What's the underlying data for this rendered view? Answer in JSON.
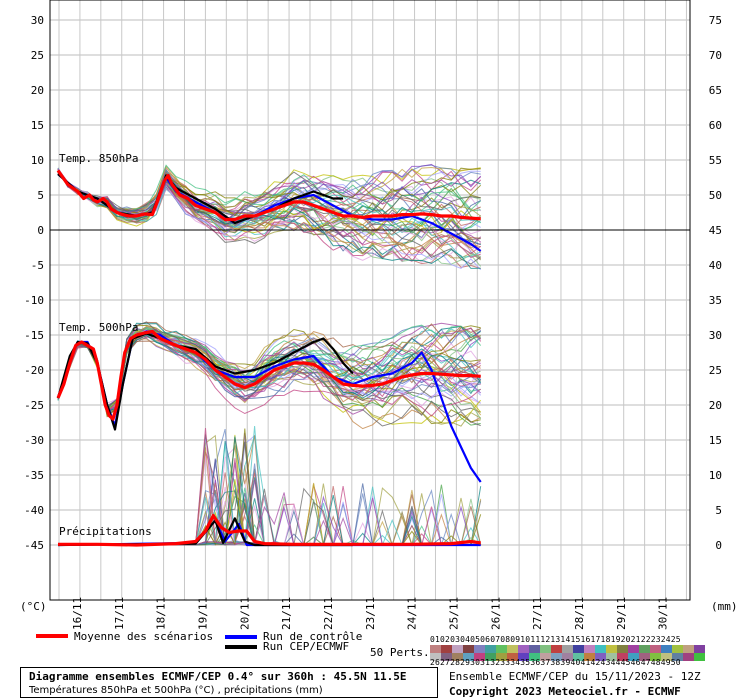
{
  "chart_data": {
    "type": "line",
    "x_dates": [
      "16/11",
      "17/11",
      "18/11",
      "19/11",
      "20/11",
      "21/11",
      "22/11",
      "23/11",
      "24/11",
      "25/11",
      "26/11",
      "27/11",
      "28/11",
      "29/11",
      "30/11"
    ],
    "left_unit": "(°C)",
    "right_unit": "(mm)",
    "left_ticks": [
      30,
      25,
      20,
      15,
      10,
      5,
      0,
      -5,
      -10,
      -15,
      -20,
      -25,
      -30,
      -35,
      -40,
      -45
    ],
    "right_ticks": [
      75,
      70,
      65,
      60,
      55,
      50,
      45,
      40,
      35,
      30,
      25,
      20,
      15,
      10,
      5,
      0
    ],
    "ylim": [
      -50,
      32
    ],
    "panel_labels": {
      "t850": "Temp. 850hPa",
      "t500": "Temp. 500hPa",
      "precip": "Précipitations"
    },
    "series": [
      {
        "name": "Moyenne des scénarios",
        "color": "#ff0000",
        "t850": [
          [
            0,
            8.5
          ],
          [
            0.5,
            6.5
          ],
          [
            1,
            5.5
          ],
          [
            1.3,
            4.5
          ],
          [
            1.6,
            5
          ],
          [
            1.8,
            4.3
          ],
          [
            2,
            4
          ],
          [
            2.3,
            4.5
          ],
          [
            2.5,
            4
          ],
          [
            2.7,
            3
          ],
          [
            3,
            2.5
          ],
          [
            3.3,
            2.2
          ],
          [
            3.6,
            2
          ],
          [
            4,
            2
          ],
          [
            4.4,
            2.3
          ],
          [
            4.8,
            2.2
          ],
          [
            5.1,
            4.5
          ],
          [
            5.4,
            7
          ],
          [
            5.6,
            7.8
          ],
          [
            5.8,
            6.5
          ],
          [
            6.2,
            5
          ],
          [
            6.6,
            4.5
          ],
          [
            7,
            3.5
          ],
          [
            7.5,
            3
          ],
          [
            8,
            2.5
          ],
          [
            8.5,
            1.5
          ],
          [
            9,
            1.5
          ],
          [
            9.5,
            2
          ],
          [
            10,
            2
          ],
          [
            10.5,
            2.5
          ],
          [
            11,
            3
          ],
          [
            11.5,
            3.5
          ],
          [
            12,
            4
          ],
          [
            12.5,
            4
          ],
          [
            13,
            3.5
          ],
          [
            13.5,
            3
          ],
          [
            14,
            2.5
          ],
          [
            14.5,
            2
          ],
          [
            15,
            2
          ],
          [
            15.5,
            1.8
          ],
          [
            16,
            2
          ],
          [
            16.5,
            2
          ],
          [
            17,
            2
          ],
          [
            17.5,
            2.2
          ],
          [
            18,
            2.2
          ],
          [
            18.5,
            2.3
          ],
          [
            19,
            2.2
          ],
          [
            19.5,
            2
          ],
          [
            20,
            2
          ],
          [
            20.5,
            1.8
          ],
          [
            21,
            1.7
          ],
          [
            21.5,
            1.6
          ]
        ],
        "t500": [
          [
            0,
            -24
          ],
          [
            0.3,
            -22
          ],
          [
            0.6,
            -19
          ],
          [
            0.9,
            -16.5
          ],
          [
            1.2,
            -16
          ],
          [
            1.5,
            -16.5
          ],
          [
            1.8,
            -17
          ],
          [
            2,
            -19
          ],
          [
            2.2,
            -22
          ],
          [
            2.4,
            -25
          ],
          [
            2.6,
            -26.5
          ],
          [
            2.8,
            -27
          ],
          [
            3,
            -25
          ],
          [
            3.2,
            -21
          ],
          [
            3.4,
            -17.5
          ],
          [
            3.7,
            -15.5
          ],
          [
            4,
            -15
          ],
          [
            4.4,
            -14.7
          ],
          [
            4.8,
            -14.5
          ],
          [
            5.2,
            -15.5
          ],
          [
            5.6,
            -16
          ],
          [
            6,
            -16.5
          ],
          [
            6.5,
            -17
          ],
          [
            7,
            -17.5
          ],
          [
            7.5,
            -18.5
          ],
          [
            8,
            -20
          ],
          [
            8.5,
            -21
          ],
          [
            9,
            -22
          ],
          [
            9.5,
            -22.5
          ],
          [
            10,
            -22
          ],
          [
            10.5,
            -21
          ],
          [
            11,
            -20
          ],
          [
            11.5,
            -19.5
          ],
          [
            12,
            -19
          ],
          [
            12.5,
            -19
          ],
          [
            13,
            -19.2
          ],
          [
            13.5,
            -20
          ],
          [
            14,
            -21
          ],
          [
            14.5,
            -22
          ],
          [
            15,
            -22.2
          ],
          [
            15.5,
            -22.3
          ],
          [
            16,
            -22.2
          ],
          [
            16.5,
            -22
          ],
          [
            17,
            -21.5
          ],
          [
            17.5,
            -21
          ],
          [
            18,
            -20.7
          ],
          [
            18.5,
            -20.5
          ],
          [
            19,
            -20.5
          ],
          [
            19.5,
            -20.6
          ],
          [
            20,
            -20.7
          ],
          [
            20.5,
            -20.8
          ],
          [
            21,
            -20.8
          ],
          [
            21.5,
            -20.9
          ]
        ],
        "precip": [
          [
            0,
            0.1
          ],
          [
            2,
            0.1
          ],
          [
            4,
            0
          ],
          [
            6,
            0.2
          ],
          [
            7,
            0.5
          ],
          [
            7.5,
            2
          ],
          [
            7.9,
            4.2
          ],
          [
            8.3,
            2.5
          ],
          [
            8.7,
            1.8
          ],
          [
            9.2,
            2
          ],
          [
            9.6,
            2
          ],
          [
            10,
            0.5
          ],
          [
            10.5,
            0.2
          ],
          [
            12,
            0.1
          ],
          [
            14,
            0.1
          ],
          [
            16,
            0.1
          ],
          [
            18,
            0.1
          ],
          [
            20,
            0.2
          ],
          [
            21,
            0.5
          ],
          [
            21.5,
            0.3
          ]
        ]
      },
      {
        "name": "Run de contrôle",
        "color": "#0000ff",
        "t850": [
          [
            0,
            8
          ],
          [
            1,
            5.5
          ],
          [
            2,
            4.5
          ],
          [
            2.5,
            3.5
          ],
          [
            3,
            2.5
          ],
          [
            4,
            2
          ],
          [
            4.8,
            2.5
          ],
          [
            5.5,
            7.5
          ],
          [
            6,
            5.5
          ],
          [
            7,
            4
          ],
          [
            8,
            2.5
          ],
          [
            9,
            1
          ],
          [
            10,
            2
          ],
          [
            11,
            3.5
          ],
          [
            12,
            4.5
          ],
          [
            13,
            5
          ],
          [
            14,
            3.5
          ],
          [
            15,
            2
          ],
          [
            16,
            1.5
          ],
          [
            17,
            1.5
          ],
          [
            18,
            2
          ],
          [
            19,
            1
          ],
          [
            20,
            -0.5
          ],
          [
            21,
            -2
          ],
          [
            21.5,
            -3
          ]
        ],
        "t500": [
          [
            0,
            -24
          ],
          [
            0.6,
            -18.5
          ],
          [
            1,
            -16
          ],
          [
            1.5,
            -16
          ],
          [
            2,
            -19
          ],
          [
            2.5,
            -25
          ],
          [
            2.9,
            -28
          ],
          [
            3.3,
            -22
          ],
          [
            3.8,
            -15.5
          ],
          [
            4.5,
            -14.5
          ],
          [
            5.2,
            -15
          ],
          [
            6,
            -16.5
          ],
          [
            7,
            -17.5
          ],
          [
            8,
            -20
          ],
          [
            9,
            -21
          ],
          [
            10,
            -21
          ],
          [
            11,
            -19.5
          ],
          [
            12,
            -18.5
          ],
          [
            13,
            -18
          ],
          [
            14,
            -21
          ],
          [
            15,
            -22
          ],
          [
            16,
            -21
          ],
          [
            17,
            -20.5
          ],
          [
            18,
            -19
          ],
          [
            18.5,
            -17.5
          ],
          [
            19,
            -20
          ],
          [
            19.5,
            -24
          ],
          [
            20,
            -28
          ],
          [
            20.5,
            -31
          ],
          [
            21,
            -34
          ],
          [
            21.5,
            -36
          ]
        ],
        "precip": [
          [
            0,
            0
          ],
          [
            7,
            0.3
          ],
          [
            8,
            3.5
          ],
          [
            8.5,
            0.5
          ],
          [
            9.2,
            3
          ],
          [
            9.6,
            0
          ],
          [
            21.5,
            0
          ]
        ]
      },
      {
        "name": "Run CEP/ECMWF",
        "color": "#000000",
        "t850": [
          [
            0,
            8
          ],
          [
            1,
            5.5
          ],
          [
            2,
            4.5
          ],
          [
            2.5,
            3.5
          ],
          [
            3,
            2.5
          ],
          [
            4,
            2
          ],
          [
            4.8,
            2.5
          ],
          [
            5.5,
            7.8
          ],
          [
            6,
            6
          ],
          [
            7,
            4.5
          ],
          [
            8,
            3
          ],
          [
            9,
            1
          ],
          [
            10,
            2
          ],
          [
            11,
            3
          ],
          [
            12,
            4.5
          ],
          [
            13,
            5.5
          ],
          [
            14,
            4.5
          ],
          [
            14.5,
            4.5
          ]
        ],
        "t500": [
          [
            0,
            -24
          ],
          [
            0.6,
            -18
          ],
          [
            1,
            -16
          ],
          [
            1.5,
            -16.2
          ],
          [
            2,
            -19
          ],
          [
            2.5,
            -25
          ],
          [
            2.9,
            -28.5
          ],
          [
            3.3,
            -22
          ],
          [
            3.8,
            -15.5
          ],
          [
            4.5,
            -14.8
          ],
          [
            5.2,
            -15.5
          ],
          [
            6,
            -16.5
          ],
          [
            7,
            -17
          ],
          [
            8,
            -19.5
          ],
          [
            9,
            -20.5
          ],
          [
            10,
            -20
          ],
          [
            11,
            -19
          ],
          [
            12,
            -17.5
          ],
          [
            13,
            -16
          ],
          [
            13.5,
            -15.5
          ],
          [
            14,
            -17
          ],
          [
            14.5,
            -19
          ],
          [
            15,
            -20.5
          ]
        ],
        "precip": [
          [
            0,
            0
          ],
          [
            7,
            0.2
          ],
          [
            8,
            3.5
          ],
          [
            8.4,
            0.3
          ],
          [
            9,
            3.8
          ],
          [
            9.5,
            0.5
          ],
          [
            10,
            0
          ],
          [
            15,
            0
          ]
        ]
      }
    ]
  },
  "legend": {
    "mean_label": "Moyenne des scénarios",
    "control_label": "Run de contrôle",
    "cep_label": "Run CEP/ECMWF",
    "perts_label": "50 Perts.",
    "pert_top": "01020304050607080910111213141516171819202122232425",
    "pert_bottom": "26272829303132333435363738394041424344454647484950"
  },
  "footer": {
    "title": "Diagramme ensembles ECMWF/CEP 0.4° sur 360h : 45.5N 11.5E",
    "subtitle": "Températures 850hPa et 500hPa (°C) , précipitations (mm)",
    "run_info": "Ensemble ECMWF/CEP du 15/11/2023 - 12Z",
    "copyright": "Copyright 2023 Meteociel.fr - ECMWF"
  },
  "colors": {
    "mean": "#ff0000",
    "control": "#0000ff",
    "cep": "#000000",
    "grid": "#b0b0b0"
  }
}
